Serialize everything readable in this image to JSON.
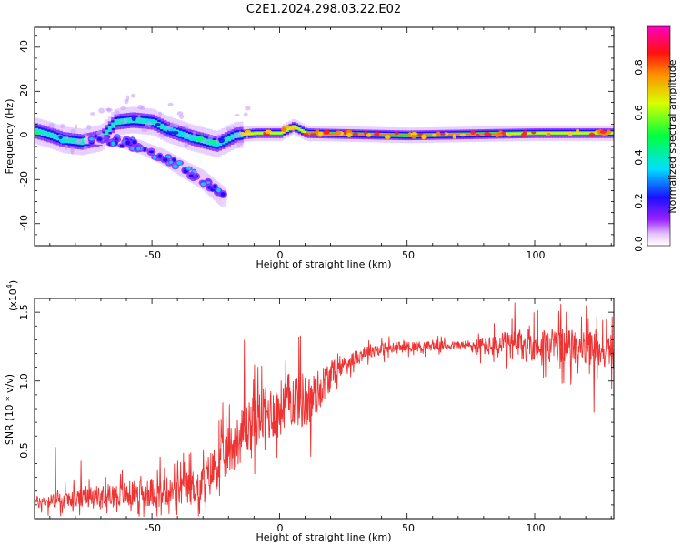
{
  "title": "C2E1.2024.298.03.22.E02",
  "chart_data": [
    {
      "type": "heatmap",
      "title": "",
      "xlabel": "Height of straight line (km)",
      "ylabel": "Frequency (Hz)",
      "xlim": [
        -96,
        131
      ],
      "ylim": [
        -50,
        49
      ],
      "xticks": [
        "-50",
        "0",
        "50",
        "100"
      ],
      "yticks": [
        "40",
        "20",
        "0",
        "-20",
        "-40"
      ],
      "colorbar": {
        "label": "Normalized spectral amplitude",
        "range": [
          0,
          1
        ],
        "ticks": [
          "0.0",
          "0.2",
          "0.4",
          "0.6",
          "0.8"
        ],
        "colormap": "rainbow (white-violet-blue-cyan-green-yellow-red-magenta)"
      },
      "main_branch": [
        {
          "x": -96,
          "y": 2
        },
        {
          "x": -90,
          "y": 0
        },
        {
          "x": -85,
          "y": -2
        },
        {
          "x": -78,
          "y": -3
        },
        {
          "x": -70,
          "y": -1
        },
        {
          "x": -65,
          "y": 6
        },
        {
          "x": -58,
          "y": 7
        },
        {
          "x": -50,
          "y": 6
        },
        {
          "x": -45,
          "y": 3
        },
        {
          "x": -40,
          "y": 1
        },
        {
          "x": -35,
          "y": -1
        },
        {
          "x": -25,
          "y": -4
        },
        {
          "x": -18,
          "y": 0
        },
        {
          "x": -10,
          "y": 1
        },
        {
          "x": 0,
          "y": 1
        },
        {
          "x": 5,
          "y": 4
        },
        {
          "x": 10,
          "y": 1
        },
        {
          "x": 50,
          "y": 0
        },
        {
          "x": 100,
          "y": 1
        },
        {
          "x": 131,
          "y": 1
        }
      ],
      "lower_branch": [
        {
          "x": -75,
          "y": -2
        },
        {
          "x": -65,
          "y": -2
        },
        {
          "x": -55,
          "y": -5
        },
        {
          "x": -45,
          "y": -10
        },
        {
          "x": -38,
          "y": -15
        },
        {
          "x": -30,
          "y": -20
        },
        {
          "x": -22,
          "y": -28
        }
      ]
    },
    {
      "type": "line",
      "title": "",
      "xlabel": "Height of straight line (km)",
      "ylabel": "SNR (10 * v/v)",
      "yscale_label": "(x10",
      "yscale_exp": "4",
      "yscale_close": ")",
      "xlim": [
        -96,
        131
      ],
      "ylim": [
        0.0,
        1.6
      ],
      "xticks": [
        "-50",
        "0",
        "50",
        "100"
      ],
      "yticks": [
        "1.5",
        "1.0",
        "0.5"
      ],
      "series_color": "#ee3333",
      "trend": [
        {
          "x": -96,
          "y": 0.12
        },
        {
          "x": -80,
          "y": 0.14
        },
        {
          "x": -60,
          "y": 0.18
        },
        {
          "x": -40,
          "y": 0.2
        },
        {
          "x": -30,
          "y": 0.25
        },
        {
          "x": -25,
          "y": 0.38
        },
        {
          "x": -15,
          "y": 0.6
        },
        {
          "x": -10,
          "y": 0.72
        },
        {
          "x": 0,
          "y": 0.8
        },
        {
          "x": 5,
          "y": 0.88
        },
        {
          "x": 12,
          "y": 0.85
        },
        {
          "x": 18,
          "y": 1.0
        },
        {
          "x": 25,
          "y": 1.12
        },
        {
          "x": 35,
          "y": 1.22
        },
        {
          "x": 50,
          "y": 1.25
        },
        {
          "x": 70,
          "y": 1.26
        },
        {
          "x": 85,
          "y": 1.25
        },
        {
          "x": 100,
          "y": 1.27
        },
        {
          "x": 115,
          "y": 1.25
        },
        {
          "x": 131,
          "y": 1.22
        }
      ],
      "noise": [
        {
          "x": -96,
          "a": 0.06
        },
        {
          "x": -70,
          "a": 0.12
        },
        {
          "x": -40,
          "a": 0.16
        },
        {
          "x": -25,
          "a": 0.25
        },
        {
          "x": -10,
          "a": 0.28
        },
        {
          "x": 10,
          "a": 0.3
        },
        {
          "x": 25,
          "a": 0.08
        },
        {
          "x": 70,
          "a": 0.04
        },
        {
          "x": 85,
          "a": 0.12
        },
        {
          "x": 100,
          "a": 0.18
        },
        {
          "x": 131,
          "a": 0.18
        }
      ],
      "peaks": [
        {
          "x": -88,
          "y": 0.52
        },
        {
          "x": -78,
          "y": 0.42
        },
        {
          "x": -47,
          "y": 0.45
        },
        {
          "x": -35,
          "y": 0.48
        },
        {
          "x": -14,
          "y": 1.3
        },
        {
          "x": -10,
          "y": 1.12
        },
        {
          "x": 8,
          "y": 1.33
        },
        {
          "x": 12,
          "y": 0.45
        },
        {
          "x": 92,
          "y": 1.57
        },
        {
          "x": 110,
          "y": 1.56
        },
        {
          "x": 120,
          "y": 1.55
        },
        {
          "x": 123,
          "y": 0.77
        }
      ]
    }
  ]
}
